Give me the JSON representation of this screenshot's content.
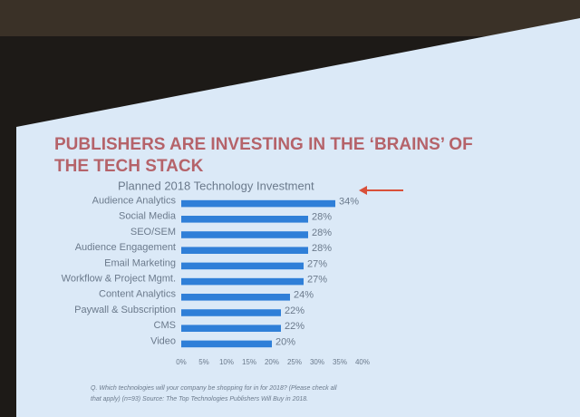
{
  "chart_data": {
    "type": "hbar",
    "title": [
      "PUBLISHERS ARE INVESTING IN THE ‘BRAINS’ OF",
      "THE TECH STACK"
    ],
    "subtitle": "Planned 2018 Technology Investment",
    "categories": [
      "Audience Analytics",
      "Social Media",
      "SEO/SEM",
      "Audience Engagement",
      "Email Marketing",
      "Workflow & Project Mgmt.",
      "Content Analytics",
      "Paywall & Subscription",
      "CMS",
      "Video"
    ],
    "values": [
      34,
      28,
      28,
      28,
      27,
      27,
      24,
      22,
      22,
      20
    ],
    "value_labels": [
      "34%",
      "28%",
      "28%",
      "28%",
      "27%",
      "27%",
      "24%",
      "22%",
      "22%",
      "20%"
    ],
    "color": "#2f7fd8",
    "xlim": [
      0,
      40
    ],
    "xticks": [
      {
        "value": 0,
        "label": "0%"
      },
      {
        "value": 5,
        "label": "5%"
      },
      {
        "value": 10,
        "label": "10%"
      },
      {
        "value": 15,
        "label": "15%"
      },
      {
        "value": 20,
        "label": "20%"
      },
      {
        "value": 25,
        "label": "25%"
      },
      {
        "value": 30,
        "label": "30%"
      },
      {
        "value": 35,
        "label": "35%"
      },
      {
        "value": 40,
        "label": "40%"
      }
    ],
    "footnote": [
      "Q. Which technologies will your company be shopping for in for 2018? (Please check all",
      "that apply) (n=93) Source: The Top Technologies Publishers Will Buy in 2018."
    ]
  }
}
